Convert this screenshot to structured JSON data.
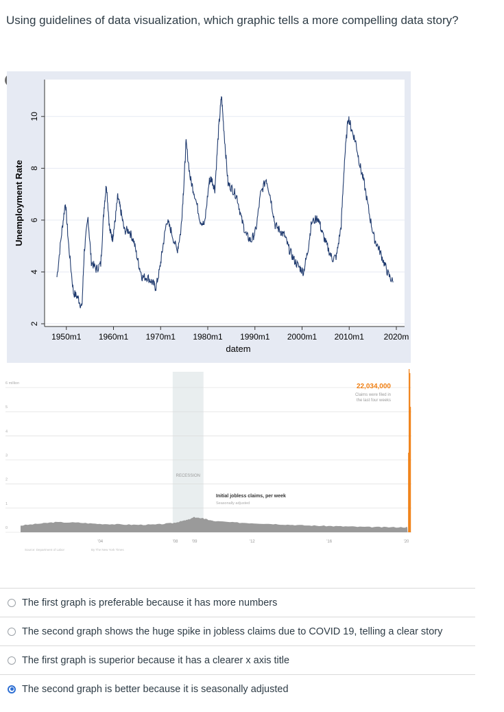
{
  "question": {
    "text": "Using guidelines of data visualization, which graphic tells a more compelling data story?"
  },
  "close_button": {
    "icon": "close-icon",
    "symbol": "×"
  },
  "chart_data": [
    {
      "type": "line",
      "title": "",
      "ylabel": "Unemployment Rate",
      "xlabel": "datem",
      "x_ticks": [
        "1950m1",
        "1960m1",
        "1970m1",
        "1980m1",
        "1990m1",
        "2000m1",
        "2010m1",
        "2020m"
      ],
      "y_ticks": [
        "2",
        "4",
        "6",
        "8",
        "10"
      ],
      "xlim": [
        1948,
        2020
      ],
      "ylim": [
        2,
        11
      ],
      "grid": true,
      "colors": {
        "line": "#1f3a6e",
        "background": "#e6eaf3"
      },
      "series": [
        {
          "x": [
            1948.0,
            1949.0,
            1949.8,
            1950.5,
            1951.5,
            1952.5,
            1953.3,
            1953.8,
            1954.6,
            1955.3,
            1956.3,
            1957.3,
            1958.0,
            1958.5,
            1959.2,
            1959.8,
            1960.3,
            1960.9,
            1961.5,
            1962.3,
            1963.3,
            1964.3,
            1965.2,
            1966.1,
            1967.2,
            1968.2,
            1969.0,
            1969.8,
            1970.5,
            1971.3,
            1972.2,
            1973.5,
            1974.3,
            1974.9,
            1975.4,
            1976.3,
            1977.2,
            1978.4,
            1979.3,
            1980.3,
            1980.8,
            1981.5,
            1982.3,
            1982.9,
            1983.5,
            1984.3,
            1985.2,
            1986.2,
            1987.2,
            1988.2,
            1989.2,
            1990.2,
            1991.2,
            1992.4,
            1993.3,
            1994.3,
            1995.3,
            1996.3,
            1997.2,
            1998.2,
            1999.3,
            2000.3,
            2001.2,
            2002.0,
            2003.4,
            2004.3,
            2005.3,
            2006.4,
            2007.3,
            2008.3,
            2009.0,
            2009.8,
            2010.5,
            2011.4,
            2012.3,
            2013.2,
            2014.3,
            2015.3,
            2016.3,
            2017.3,
            2018.3,
            2019.3
          ],
          "y": [
            3.8,
            5.5,
            6.7,
            5.0,
            3.2,
            3.0,
            2.6,
            4.8,
            6.1,
            4.4,
            4.1,
            4.3,
            6.5,
            7.4,
            5.6,
            5.3,
            5.9,
            6.9,
            6.4,
            5.6,
            5.6,
            5.2,
            4.4,
            3.8,
            3.8,
            3.6,
            3.4,
            4.1,
            5.0,
            6.0,
            5.6,
            4.8,
            5.6,
            7.3,
            9.0,
            7.6,
            7.0,
            6.0,
            5.8,
            7.5,
            7.6,
            7.2,
            9.5,
            10.8,
            9.3,
            7.4,
            7.2,
            6.9,
            6.0,
            5.4,
            5.2,
            5.6,
            7.0,
            7.6,
            6.9,
            5.8,
            5.6,
            5.4,
            4.9,
            4.5,
            4.2,
            4.0,
            4.8,
            5.9,
            6.1,
            5.5,
            5.0,
            4.5,
            4.6,
            5.8,
            8.3,
            10.0,
            9.5,
            9.0,
            8.1,
            7.4,
            6.2,
            5.3,
            4.9,
            4.4,
            3.9,
            3.6
          ]
        }
      ]
    },
    {
      "type": "area",
      "title": "Initial jobless claims, per week",
      "subtitle": "Seasonally adjusted",
      "y_ticks": [
        "6 million",
        "5",
        "4",
        "3",
        "2",
        "1",
        "0"
      ],
      "x_ticks": [
        "'04",
        "'08",
        "'09",
        "'12",
        "'16",
        "'20"
      ],
      "recession_label": "RECESSION",
      "callout_value": "22,034,000",
      "callout_text": [
        "Claims were filed in",
        "the last four weeks"
      ],
      "source_text": "Source: Department of Labor",
      "byline": "By The New York Times",
      "xlim": [
        2000,
        2020.3
      ],
      "ylim": [
        0,
        6
      ],
      "grid": true,
      "colors": {
        "area": "#9a9a9a",
        "highlight": "#f07f13",
        "recession": "#e9eeef",
        "grid": "#d8d8d8"
      },
      "recession_range": [
        2007.9,
        2009.5
      ],
      "series": [
        {
          "x": [
            2000.0,
            2001.0,
            2001.8,
            2003.0,
            2004.0,
            2005.0,
            2006.0,
            2007.0,
            2007.9,
            2008.3,
            2008.7,
            2009.0,
            2009.3,
            2009.6,
            2010.0,
            2011.0,
            2012.0,
            2013.0,
            2014.0,
            2015.0,
            2016.0,
            2017.0,
            2018.0,
            2019.0,
            2020.0,
            2020.1
          ],
          "y": [
            0.28,
            0.36,
            0.42,
            0.4,
            0.35,
            0.33,
            0.31,
            0.32,
            0.38,
            0.45,
            0.52,
            0.62,
            0.6,
            0.55,
            0.47,
            0.41,
            0.38,
            0.35,
            0.31,
            0.28,
            0.26,
            0.24,
            0.22,
            0.21,
            0.21,
            0.22
          ]
        },
        {
          "name": "",
          "x": [
            2020.15,
            2020.18,
            2020.22,
            2020.25
          ],
          "y": [
            3.3,
            6.9,
            6.6,
            5.2
          ],
          "highlight": true
        }
      ]
    }
  ],
  "options": [
    {
      "label": "The first graph is preferable because it has more numbers",
      "selected": false
    },
    {
      "label": "The second graph shows the huge spike in jobless claims due to COVID 19, telling a clear story",
      "selected": false
    },
    {
      "label": "The first graph is superior because it has a clearer x axis title",
      "selected": false
    },
    {
      "label": "The second graph is better because it is seasonally adjusted",
      "selected": true
    }
  ]
}
